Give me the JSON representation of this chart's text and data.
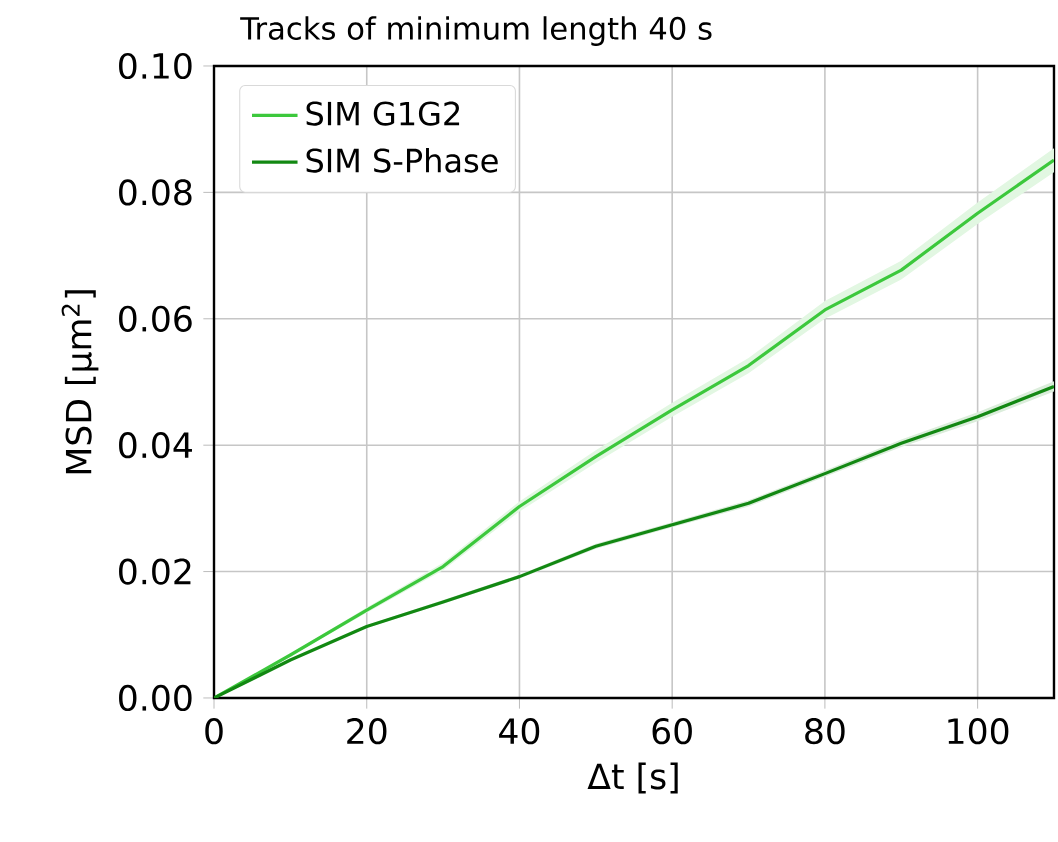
{
  "chart_data": {
    "type": "line",
    "title": "Tracks of minimum length 40 s",
    "xlabel": "Δt [s]",
    "ylabel": "MSD [µm$^{2}$]",
    "x": [
      0,
      10,
      20,
      30,
      40,
      50,
      60,
      70,
      80,
      90,
      100,
      110
    ],
    "series": [
      {
        "name": "SIM G1G2",
        "color": "#3cc83c",
        "values": [
          0,
          0.0068,
          0.0139,
          0.0208,
          0.0303,
          0.0382,
          0.0456,
          0.0526,
          0.0614,
          0.0677,
          0.0767,
          0.0851
        ],
        "lower": [
          0,
          0.0066,
          0.0135,
          0.0202,
          0.0295,
          0.0372,
          0.0445,
          0.0514,
          0.06,
          0.0662,
          0.075,
          0.0832
        ],
        "upper": [
          0,
          0.007,
          0.0143,
          0.0214,
          0.0311,
          0.0392,
          0.0467,
          0.0538,
          0.0628,
          0.0692,
          0.0784,
          0.087
        ]
      },
      {
        "name": "SIM S-Phase",
        "color": "#128812",
        "values": [
          0,
          0.006,
          0.0113,
          0.0152,
          0.0192,
          0.024,
          0.0274,
          0.0308,
          0.0355,
          0.0403,
          0.0445,
          0.0493
        ],
        "lower": [
          0,
          0.0059,
          0.0111,
          0.0149,
          0.0189,
          0.0236,
          0.027,
          0.0303,
          0.035,
          0.0397,
          0.0438,
          0.0485
        ],
        "upper": [
          0,
          0.0061,
          0.0115,
          0.0155,
          0.0195,
          0.0244,
          0.0278,
          0.0313,
          0.036,
          0.0409,
          0.0452,
          0.0501
        ]
      }
    ],
    "xlim": [
      0,
      110
    ],
    "ylim": [
      0,
      0.1
    ],
    "xticks": [
      0,
      20,
      40,
      60,
      80,
      100
    ],
    "yticks": [
      {
        "value": 0,
        "label": "0.00"
      },
      {
        "value": 0.02,
        "label": "0.02"
      },
      {
        "value": 0.04,
        "label": "0.04"
      },
      {
        "value": 0.06,
        "label": "0.06"
      },
      {
        "value": 0.08,
        "label": "0.08"
      },
      {
        "value": 0.1,
        "label": "0.10"
      }
    ],
    "grid": true,
    "legend": "top left",
    "line_style": "solid",
    "marker": "none"
  }
}
